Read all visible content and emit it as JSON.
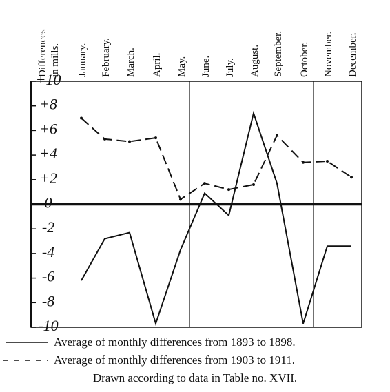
{
  "chart_data": {
    "type": "line",
    "y_label": [
      "Differences",
      "in mills."
    ],
    "categories": [
      "January.",
      "February.",
      "March.",
      "April.",
      "May.",
      "June.",
      "July.",
      "August.",
      "September.",
      "October.",
      "November.",
      "December."
    ],
    "series": [
      {
        "name": "Average of monthly differences from 1893 to 1898.",
        "color": "#111111",
        "dash": false,
        "values": [
          -6.2,
          -2.8,
          -2.3,
          -9.7,
          -3.7,
          0.9,
          -0.9,
          7.4,
          1.7,
          -9.7,
          -3.4,
          -3.4
        ]
      },
      {
        "name": "Average of monthly differences from 1903 to 1911.",
        "color": "#111111",
        "dash": true,
        "values": [
          7.0,
          5.3,
          5.1,
          5.4,
          0.4,
          1.7,
          1.2,
          1.6,
          5.6,
          3.4,
          3.5,
          2.2
        ]
      }
    ],
    "ylim": [
      -10,
      10
    ],
    "yticks": [
      {
        "value": 10,
        "label": "+10"
      },
      {
        "value": 8,
        "label": "+8"
      },
      {
        "value": 6,
        "label": "+6"
      },
      {
        "value": 4,
        "label": "+4"
      },
      {
        "value": 2,
        "label": "+2"
      },
      0,
      -2,
      -4,
      -6,
      -8,
      -10
    ],
    "caption": "Drawn according to data in Table no. XVII."
  }
}
